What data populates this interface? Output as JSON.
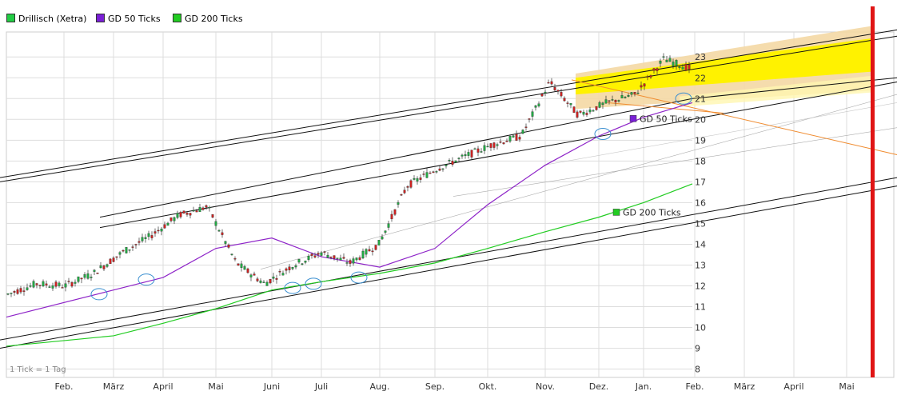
{
  "legend": [
    {
      "label": "Drillisch (Xetra)",
      "color": "#22cc44"
    },
    {
      "label": "GD 50 Ticks",
      "color": "#7a1fd6"
    },
    {
      "label": "GD 200 Ticks",
      "color": "#22cc22"
    }
  ],
  "footnote": "1 Tick = 1 Tag",
  "colors": {
    "grid": "#dddddd",
    "candle_up": "#22aa44",
    "candle_down": "#cc2222",
    "gd50": "#8e24c8",
    "gd200": "#22cc22",
    "channel": "#111111",
    "highlight_fill": "#fff200",
    "highlight_band": "#f4d8a4",
    "orange_line": "#f08c30",
    "red_marker": "#e01515",
    "circle": "#3a8fd0"
  },
  "chart_data": {
    "type": "candlestick",
    "title": "",
    "xlabel": "",
    "ylabel": "",
    "ylim": [
      7.6,
      24.2
    ],
    "y_ticks": [
      "8",
      "9",
      "10",
      "11",
      "12",
      "13",
      "14",
      "15",
      "16",
      "17",
      "18",
      "19",
      "20",
      "21",
      "22",
      "23"
    ],
    "x_ticks": [
      "Feb.",
      "März",
      "April",
      "Mai",
      "Juni",
      "Juli",
      "Aug.",
      "Sep.",
      "Okt.",
      "Nov.",
      "Dez.",
      "Jan.",
      "Feb.",
      "März",
      "April",
      "Mai"
    ],
    "x_period": "Feb. – Feb. (daily ticks), projection to Mai",
    "annotations": [
      {
        "text": "GD 50 Ticks",
        "color": "#7a1fd6",
        "value": 20.0
      },
      {
        "text": "GD 200 Ticks",
        "color": "#22cc22",
        "value": 15.5
      }
    ],
    "price_path": [
      {
        "x": "Feb.",
        "y": 11.6
      },
      {
        "x": "Feb.",
        "y": 12.1
      },
      {
        "x": "März",
        "y": 12.0
      },
      {
        "x": "März",
        "y": 12.6
      },
      {
        "x": "April",
        "y": 13.6
      },
      {
        "x": "April",
        "y": 14.4
      },
      {
        "x": "Mai",
        "y": 15.4
      },
      {
        "x": "Mai",
        "y": 15.8
      },
      {
        "x": "Juni",
        "y": 13.1
      },
      {
        "x": "Juni",
        "y": 12.1
      },
      {
        "x": "Juli",
        "y": 13.0
      },
      {
        "x": "Juli",
        "y": 13.6
      },
      {
        "x": "Aug.",
        "y": 13.1
      },
      {
        "x": "Aug.",
        "y": 14.0
      },
      {
        "x": "Sep.",
        "y": 16.8
      },
      {
        "x": "Sep.",
        "y": 17.6
      },
      {
        "x": "Okt.",
        "y": 18.2
      },
      {
        "x": "Okt.",
        "y": 18.8
      },
      {
        "x": "Nov.",
        "y": 19.2
      },
      {
        "x": "Nov.",
        "y": 21.8
      },
      {
        "x": "Dez.",
        "y": 20.2
      },
      {
        "x": "Dez.",
        "y": 20.8
      },
      {
        "x": "Jan.",
        "y": 21.2
      },
      {
        "x": "Jan.",
        "y": 22.9
      },
      {
        "x": "Feb.",
        "y": 22.4
      }
    ],
    "series": [
      {
        "name": "GD 50 Ticks",
        "values": [
          {
            "x": "Feb.",
            "y": 10.5
          },
          {
            "x": "März",
            "y": 11.8
          },
          {
            "x": "April",
            "y": 12.4
          },
          {
            "x": "Mai",
            "y": 13.8
          },
          {
            "x": "Juni",
            "y": 14.3
          },
          {
            "x": "Juli",
            "y": 13.4
          },
          {
            "x": "Aug.",
            "y": 12.9
          },
          {
            "x": "Sep.",
            "y": 13.8
          },
          {
            "x": "Okt.",
            "y": 15.9
          },
          {
            "x": "Nov.",
            "y": 17.8
          },
          {
            "x": "Dez.",
            "y": 19.2
          },
          {
            "x": "Jan.",
            "y": 20.1
          },
          {
            "x": "Feb.",
            "y": 20.8
          }
        ]
      },
      {
        "name": "GD 200 Ticks",
        "values": [
          {
            "x": "Feb.",
            "y": 9.1
          },
          {
            "x": "März",
            "y": 9.6
          },
          {
            "x": "April",
            "y": 10.2
          },
          {
            "x": "Mai",
            "y": 10.9
          },
          {
            "x": "Juni",
            "y": 11.8
          },
          {
            "x": "Juli",
            "y": 12.2
          },
          {
            "x": "Aug.",
            "y": 12.6
          },
          {
            "x": "Sep.",
            "y": 13.1
          },
          {
            "x": "Okt.",
            "y": 13.8
          },
          {
            "x": "Nov.",
            "y": 14.6
          },
          {
            "x": "Dez.",
            "y": 15.3
          },
          {
            "x": "Jan.",
            "y": 16.0
          },
          {
            "x": "Feb.",
            "y": 16.9
          }
        ]
      }
    ]
  }
}
